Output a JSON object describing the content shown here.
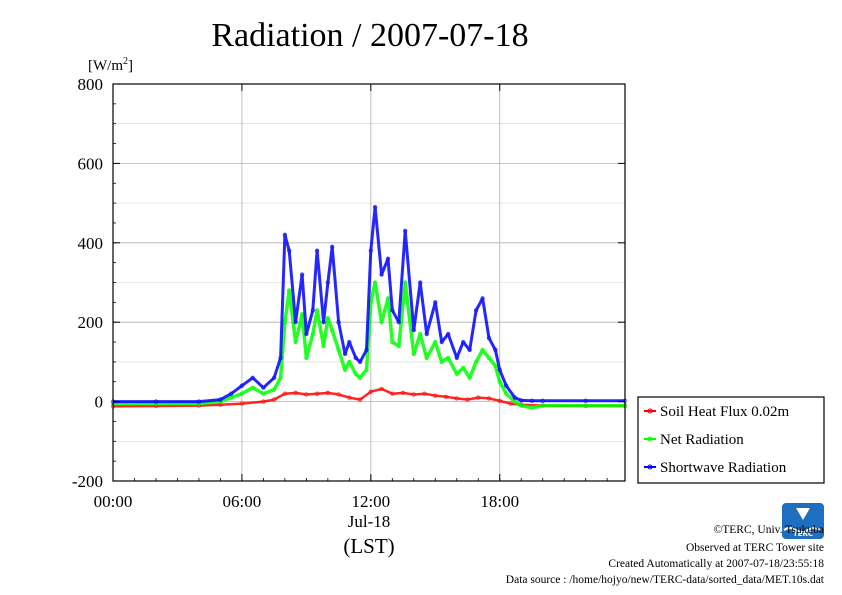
{
  "chart_data": {
    "type": "line",
    "title": "Radiation / 2007-07-18",
    "ylabel": "[W/m",
    "ylabel_sup": "2",
    "ylabel_close": "]",
    "ylim": [
      -200,
      800
    ],
    "yticks": [
      -200,
      0,
      200,
      400,
      600,
      800
    ],
    "ytick_labels": [
      "-200",
      "0",
      "200",
      "400",
      "600",
      "800"
    ],
    "xlim": [
      0,
      23.83
    ],
    "xticks": [
      0,
      6,
      12,
      18
    ],
    "xtick_labels": [
      "00:00",
      "06:00",
      "12:00",
      "18:00"
    ],
    "x_date_label": "Jul-18",
    "xlabel": "(LST)",
    "grid": true,
    "legend_position": "bottom-right-outside",
    "series": [
      {
        "name": "Soil Heat Flux 0.02m",
        "color": "#ff0000",
        "x": [
          0,
          2,
          4,
          5,
          6,
          7,
          7.5,
          8,
          8.5,
          9,
          9.5,
          10,
          10.5,
          11,
          11.5,
          12,
          12.5,
          13,
          13.5,
          14,
          14.5,
          15,
          15.5,
          16,
          16.5,
          17,
          17.5,
          18,
          18.5,
          19,
          20,
          22,
          23.83
        ],
        "y": [
          -12,
          -11,
          -10,
          -8,
          -5,
          0,
          5,
          20,
          22,
          18,
          20,
          22,
          18,
          10,
          5,
          25,
          32,
          20,
          22,
          18,
          20,
          15,
          12,
          8,
          5,
          10,
          8,
          2,
          -5,
          -8,
          -10,
          -11,
          -11
        ]
      },
      {
        "name": "Net Radiation",
        "color": "#00ff00",
        "x": [
          0,
          2,
          4,
          5,
          5.5,
          6,
          6.5,
          7,
          7.5,
          7.8,
          8,
          8.2,
          8.5,
          8.8,
          9,
          9.3,
          9.5,
          9.8,
          10,
          10.2,
          10.5,
          10.8,
          11,
          11.3,
          11.5,
          11.8,
          12,
          12.2,
          12.5,
          12.8,
          13,
          13.3,
          13.6,
          14,
          14.3,
          14.6,
          15,
          15.3,
          15.6,
          16,
          16.3,
          16.6,
          16.9,
          17.2,
          17.5,
          17.8,
          18,
          18.3,
          18.7,
          19,
          19.5,
          20,
          22,
          23.83
        ],
        "y": [
          -5,
          -5,
          -5,
          0,
          10,
          20,
          35,
          20,
          30,
          60,
          200,
          280,
          150,
          220,
          110,
          170,
          230,
          140,
          210,
          180,
          130,
          80,
          100,
          70,
          60,
          80,
          250,
          300,
          200,
          260,
          150,
          140,
          300,
          120,
          170,
          110,
          150,
          100,
          110,
          70,
          85,
          60,
          100,
          130,
          110,
          90,
          50,
          20,
          0,
          -10,
          -15,
          -10,
          -10,
          -10
        ]
      },
      {
        "name": "Shortwave Radiation",
        "color": "#0000ff",
        "x": [
          0,
          2,
          4,
          5,
          5.5,
          6,
          6.5,
          7,
          7.5,
          7.8,
          8,
          8.2,
          8.5,
          8.8,
          9,
          9.3,
          9.5,
          9.8,
          10,
          10.2,
          10.5,
          10.8,
          11,
          11.3,
          11.5,
          11.8,
          12,
          12.2,
          12.5,
          12.8,
          13,
          13.3,
          13.6,
          14,
          14.3,
          14.6,
          15,
          15.3,
          15.6,
          16,
          16.3,
          16.6,
          16.9,
          17.2,
          17.5,
          17.8,
          18,
          18.3,
          18.7,
          19,
          19.5,
          20,
          22,
          23.83
        ],
        "y": [
          0,
          0,
          0,
          5,
          20,
          40,
          60,
          35,
          60,
          110,
          420,
          380,
          200,
          320,
          170,
          230,
          380,
          200,
          300,
          390,
          200,
          120,
          150,
          110,
          100,
          130,
          380,
          490,
          320,
          360,
          230,
          200,
          430,
          180,
          300,
          170,
          250,
          150,
          170,
          110,
          150,
          130,
          230,
          260,
          160,
          130,
          80,
          40,
          10,
          3,
          2,
          2,
          2,
          2
        ]
      }
    ]
  },
  "footer": {
    "copyright": "©TERC, Univ. Tsukuba",
    "observed": "Observed at TERC Tower site",
    "created": "Created Automatically at 2007-07-18/23:55:18",
    "source": "Data source : /home/hojyo/new/TERC-data/sorted_data/MET.10s.dat"
  },
  "logo": {
    "text": "TERC",
    "color": "#1e6fc0"
  }
}
